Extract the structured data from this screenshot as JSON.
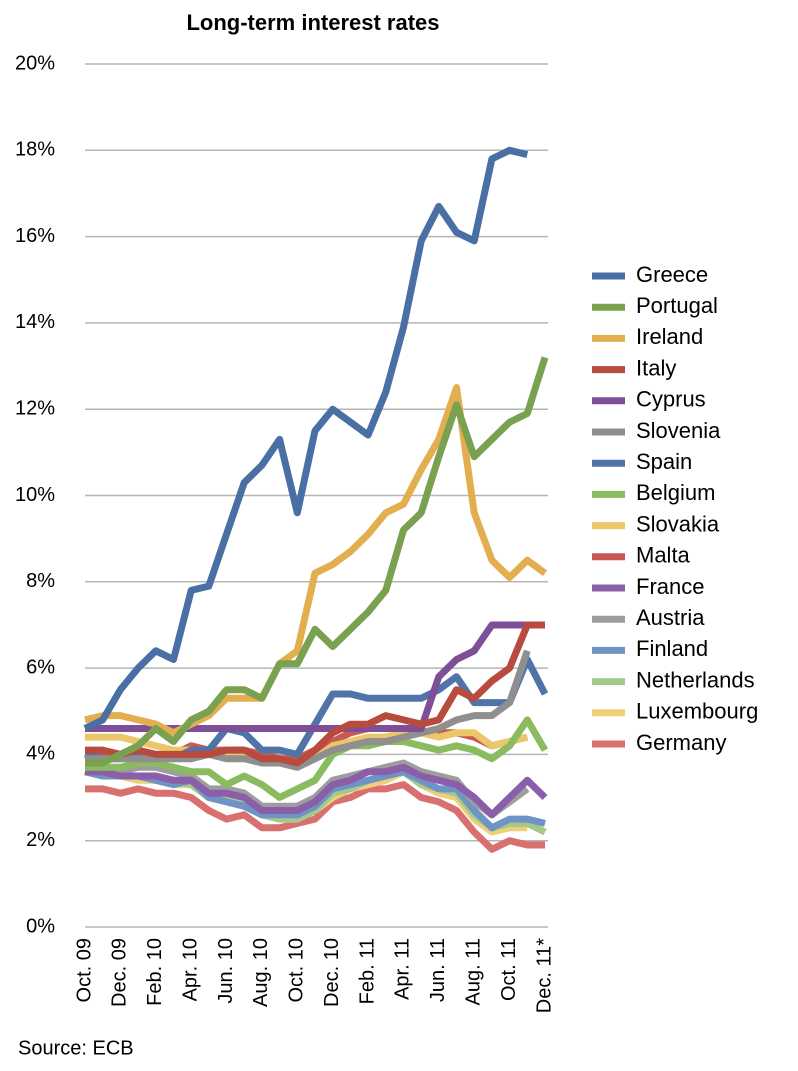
{
  "chart_data": {
    "type": "line",
    "title": "Long-term interest rates",
    "source": "Source: ECB",
    "categories": [
      "Oct. 09",
      null,
      "Dec. 09",
      null,
      "Feb. 10",
      null,
      "Apr. 10",
      null,
      "Jun. 10",
      null,
      "Aug. 10",
      null,
      "Oct. 10",
      null,
      "Dec. 10",
      null,
      "Feb. 11",
      null,
      "Apr. 11",
      null,
      "Jun. 11",
      null,
      "Aug. 11",
      null,
      "Oct. 11",
      null,
      "Dec. 11*"
    ],
    "ylim": [
      0,
      20
    ],
    "yticks": [
      {
        "value": 0,
        "label": "0%"
      },
      {
        "value": 2,
        "label": "2%"
      },
      {
        "value": 4,
        "label": "4%"
      },
      {
        "value": 6,
        "label": "6%"
      },
      {
        "value": 8,
        "label": "8%"
      },
      {
        "value": 10,
        "label": "10%"
      },
      {
        "value": 12,
        "label": "12%"
      },
      {
        "value": 14,
        "label": "14%"
      },
      {
        "value": 16,
        "label": "16%"
      },
      {
        "value": 18,
        "label": "18%"
      },
      {
        "value": 20,
        "label": "20%"
      }
    ],
    "grid": true,
    "legend": "right",
    "series": [
      {
        "name": "Greece",
        "color": "#4a6fa5",
        "values": [
          4.6,
          4.8,
          5.5,
          6.0,
          6.4,
          6.2,
          7.8,
          7.9,
          9.1,
          10.3,
          10.7,
          11.3,
          9.6,
          11.5,
          12.0,
          11.7,
          11.4,
          12.4,
          13.9,
          15.9,
          16.7,
          16.1,
          15.9,
          17.8,
          18.0,
          17.9,
          null
        ]
      },
      {
        "name": "Portugal",
        "color": "#7aa150",
        "values": [
          3.8,
          3.8,
          4.0,
          4.2,
          4.6,
          4.3,
          4.8,
          5.0,
          5.5,
          5.5,
          5.3,
          6.1,
          6.1,
          6.9,
          6.5,
          6.9,
          7.3,
          7.8,
          9.2,
          9.6,
          10.9,
          12.1,
          10.9,
          11.3,
          11.7,
          11.9,
          13.2
        ]
      },
      {
        "name": "Ireland",
        "color": "#e2ae4f",
        "values": [
          4.8,
          4.9,
          4.9,
          4.8,
          4.7,
          4.5,
          4.7,
          4.9,
          5.3,
          5.3,
          5.3,
          6.1,
          6.4,
          8.2,
          8.4,
          8.7,
          9.1,
          9.6,
          9.8,
          10.6,
          11.3,
          12.5,
          9.6,
          8.5,
          8.1,
          8.5,
          8.2
        ]
      },
      {
        "name": "Italy",
        "color": "#b84a3e",
        "values": [
          4.1,
          4.1,
          4.0,
          4.1,
          4.0,
          4.0,
          4.0,
          4.0,
          4.1,
          4.1,
          3.9,
          3.9,
          3.8,
          4.1,
          4.5,
          4.7,
          4.7,
          4.9,
          4.8,
          4.7,
          4.8,
          5.5,
          5.3,
          5.7,
          6.0,
          7.0,
          7.0
        ]
      },
      {
        "name": "Cyprus",
        "color": "#7e4f96",
        "values": [
          4.6,
          4.6,
          4.6,
          4.6,
          4.6,
          4.6,
          4.6,
          4.6,
          4.6,
          4.6,
          4.6,
          4.6,
          4.6,
          4.6,
          4.6,
          4.6,
          4.6,
          4.6,
          4.6,
          4.6,
          5.8,
          6.2,
          6.4,
          7.0,
          7.0,
          7.0,
          null
        ]
      },
      {
        "name": "Slovenia",
        "color": "#8f8f8f",
        "values": [
          3.9,
          3.9,
          3.9,
          3.9,
          3.9,
          3.9,
          3.9,
          4.0,
          3.9,
          3.9,
          3.8,
          3.8,
          3.7,
          3.9,
          4.1,
          4.2,
          4.3,
          4.3,
          4.4,
          4.5,
          4.6,
          4.8,
          4.9,
          4.9,
          5.2,
          6.4,
          null
        ]
      },
      {
        "name": "Spain",
        "color": "#4f74a8",
        "values": [
          4.0,
          3.9,
          3.9,
          4.0,
          4.0,
          3.9,
          4.1,
          4.1,
          4.6,
          4.5,
          4.1,
          4.1,
          4.0,
          4.7,
          5.4,
          5.4,
          5.3,
          5.3,
          5.3,
          5.3,
          5.5,
          5.8,
          5.2,
          5.2,
          5.2,
          6.2,
          5.4
        ]
      },
      {
        "name": "Belgium",
        "color": "#8bbb5f",
        "values": [
          3.7,
          3.7,
          3.7,
          3.8,
          3.8,
          3.7,
          3.6,
          3.6,
          3.3,
          3.5,
          3.3,
          3.0,
          3.2,
          3.4,
          4.0,
          4.2,
          4.2,
          4.3,
          4.3,
          4.2,
          4.1,
          4.2,
          4.1,
          3.9,
          4.2,
          4.8,
          4.1
        ]
      },
      {
        "name": "Slovakia",
        "color": "#ecc66b",
        "values": [
          4.4,
          4.4,
          4.4,
          4.3,
          4.2,
          4.1,
          4.1,
          4.0,
          4.0,
          4.0,
          3.9,
          3.8,
          3.8,
          3.9,
          4.2,
          4.3,
          4.4,
          4.4,
          4.5,
          4.5,
          4.4,
          4.5,
          4.5,
          4.2,
          4.3,
          4.4,
          null
        ]
      },
      {
        "name": "Malta",
        "color": "#c85a55",
        "values": [
          4.0,
          4.0,
          4.0,
          4.0,
          4.0,
          4.0,
          4.2,
          4.1,
          4.1,
          4.1,
          4.0,
          3.9,
          3.9,
          4.1,
          4.3,
          4.5,
          4.6,
          4.6,
          4.6,
          4.5,
          4.5,
          4.5,
          4.4,
          4.2,
          4.3,
          4.4,
          null
        ]
      },
      {
        "name": "France",
        "color": "#8a5ea8",
        "values": [
          3.6,
          3.6,
          3.5,
          3.5,
          3.5,
          3.4,
          3.4,
          3.1,
          3.1,
          3.0,
          2.7,
          2.7,
          2.7,
          2.9,
          3.3,
          3.4,
          3.6,
          3.6,
          3.7,
          3.5,
          3.4,
          3.3,
          3.0,
          2.6,
          3.0,
          3.4,
          3.0
        ]
      },
      {
        "name": "Austria",
        "color": "#9d9d9d",
        "values": [
          3.7,
          3.7,
          3.6,
          3.7,
          3.7,
          3.6,
          3.5,
          3.2,
          3.2,
          3.1,
          2.8,
          2.8,
          2.8,
          3.0,
          3.4,
          3.5,
          3.6,
          3.7,
          3.8,
          3.6,
          3.5,
          3.4,
          2.9,
          2.6,
          2.9,
          3.2,
          null
        ]
      },
      {
        "name": "Finland",
        "color": "#6f93c5",
        "values": [
          3.6,
          3.5,
          3.5,
          3.5,
          3.4,
          3.3,
          3.4,
          3.0,
          2.9,
          2.8,
          2.6,
          2.6,
          2.6,
          2.8,
          3.2,
          3.3,
          3.4,
          3.5,
          3.6,
          3.4,
          3.2,
          3.2,
          2.7,
          2.3,
          2.5,
          2.5,
          2.4
        ]
      },
      {
        "name": "Netherlands",
        "color": "#a5c98b",
        "values": [
          3.6,
          3.6,
          3.5,
          3.5,
          3.5,
          3.4,
          3.3,
          3.0,
          3.0,
          2.9,
          2.6,
          2.5,
          2.5,
          2.7,
          3.1,
          3.2,
          3.4,
          3.5,
          3.6,
          3.3,
          3.2,
          3.1,
          2.6,
          2.3,
          2.4,
          2.4,
          2.2
        ]
      },
      {
        "name": "Luxembourg",
        "color": "#efd07a",
        "values": [
          3.6,
          3.5,
          3.5,
          3.4,
          3.4,
          3.3,
          3.3,
          3.0,
          2.9,
          2.8,
          2.6,
          2.5,
          2.5,
          2.7,
          3.0,
          3.2,
          3.3,
          3.4,
          3.6,
          3.3,
          3.1,
          3.0,
          2.5,
          2.2,
          2.3,
          2.3,
          null
        ]
      },
      {
        "name": "Germany",
        "color": "#d87070",
        "values": [
          3.2,
          3.2,
          3.1,
          3.2,
          3.1,
          3.1,
          3.0,
          2.7,
          2.5,
          2.6,
          2.3,
          2.3,
          2.4,
          2.5,
          2.9,
          3.0,
          3.2,
          3.2,
          3.3,
          3.0,
          2.9,
          2.7,
          2.2,
          1.8,
          2.0,
          1.9,
          1.9
        ]
      }
    ]
  }
}
